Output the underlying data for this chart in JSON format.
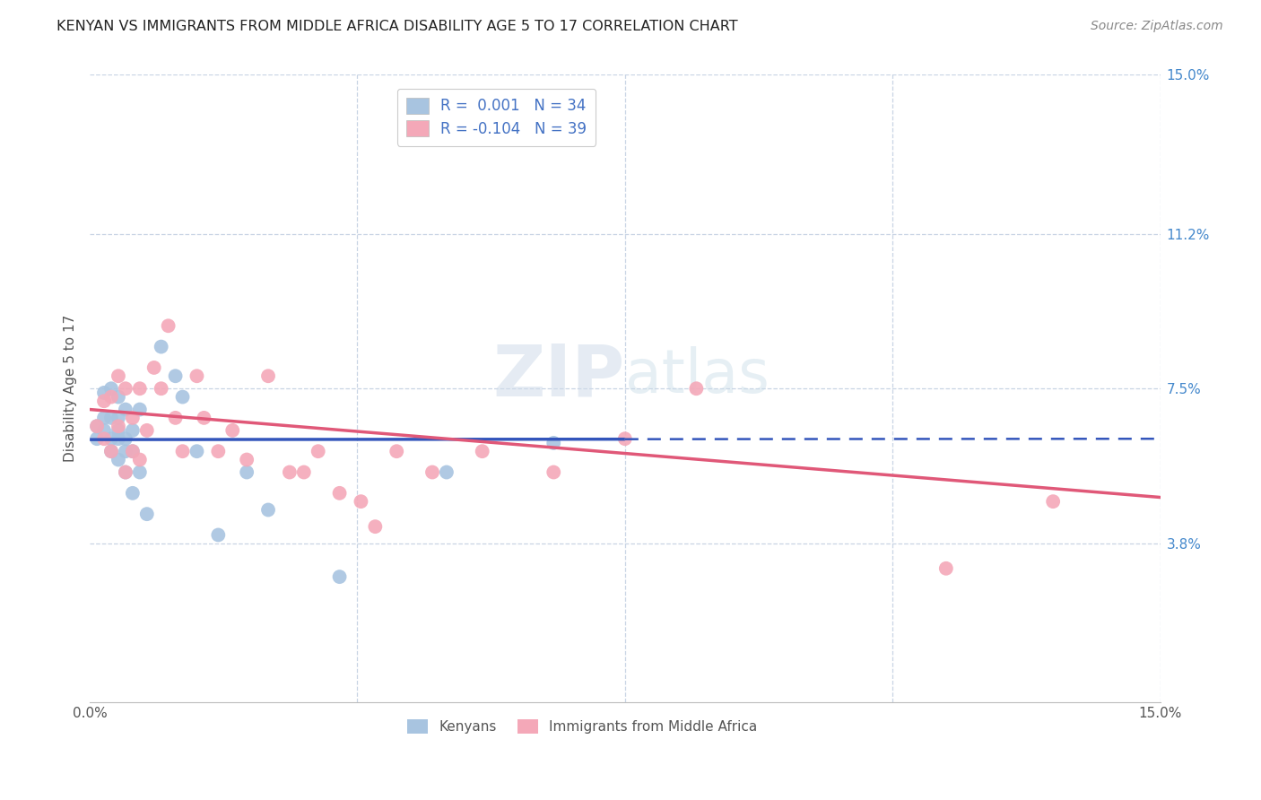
{
  "title": "KENYAN VS IMMIGRANTS FROM MIDDLE AFRICA DISABILITY AGE 5 TO 17 CORRELATION CHART",
  "source": "Source: ZipAtlas.com",
  "ylabel": "Disability Age 5 to 17",
  "xlim": [
    0,
    0.15
  ],
  "ylim": [
    0,
    0.15
  ],
  "ytick_positions_right": [
    0.15,
    0.112,
    0.075,
    0.038
  ],
  "ytick_labels_right": [
    "15.0%",
    "11.2%",
    "7.5%",
    "3.8%"
  ],
  "legend_label1": "R =  0.001   N = 34",
  "legend_label2": "R = -0.104   N = 39",
  "kenyan_color": "#a8c4e0",
  "immigrant_color": "#f4a8b8",
  "kenyan_line_color": "#3355bb",
  "immigrant_line_color": "#e05878",
  "background_color": "#ffffff",
  "grid_color": "#c8d4e4",
  "watermark_color": "#dce8f0",
  "kenyan_line_solid_end": 0.075,
  "kenyans_x": [
    0.001,
    0.001,
    0.002,
    0.002,
    0.002,
    0.003,
    0.003,
    0.003,
    0.003,
    0.004,
    0.004,
    0.004,
    0.004,
    0.004,
    0.005,
    0.005,
    0.005,
    0.005,
    0.006,
    0.006,
    0.006,
    0.007,
    0.007,
    0.008,
    0.01,
    0.012,
    0.013,
    0.015,
    0.018,
    0.022,
    0.025,
    0.035,
    0.05,
    0.065
  ],
  "kenyans_y": [
    0.063,
    0.066,
    0.065,
    0.068,
    0.074,
    0.06,
    0.063,
    0.068,
    0.075,
    0.058,
    0.063,
    0.065,
    0.068,
    0.073,
    0.055,
    0.06,
    0.063,
    0.07,
    0.05,
    0.06,
    0.065,
    0.055,
    0.07,
    0.045,
    0.085,
    0.078,
    0.073,
    0.06,
    0.04,
    0.055,
    0.046,
    0.03,
    0.055,
    0.062
  ],
  "immigrants_x": [
    0.001,
    0.002,
    0.002,
    0.003,
    0.003,
    0.004,
    0.004,
    0.005,
    0.005,
    0.006,
    0.006,
    0.007,
    0.007,
    0.008,
    0.009,
    0.01,
    0.011,
    0.012,
    0.013,
    0.015,
    0.016,
    0.018,
    0.02,
    0.022,
    0.025,
    0.028,
    0.03,
    0.032,
    0.035,
    0.038,
    0.04,
    0.043,
    0.048,
    0.055,
    0.065,
    0.075,
    0.085,
    0.12,
    0.135
  ],
  "immigrants_y": [
    0.066,
    0.063,
    0.072,
    0.06,
    0.073,
    0.066,
    0.078,
    0.055,
    0.075,
    0.06,
    0.068,
    0.058,
    0.075,
    0.065,
    0.08,
    0.075,
    0.09,
    0.068,
    0.06,
    0.078,
    0.068,
    0.06,
    0.065,
    0.058,
    0.078,
    0.055,
    0.055,
    0.06,
    0.05,
    0.048,
    0.042,
    0.06,
    0.055,
    0.06,
    0.055,
    0.063,
    0.075,
    0.032,
    0.048
  ],
  "kenyan_trend_x0": 0.0,
  "kenyan_trend_y0": 0.0628,
  "kenyan_trend_x1": 0.15,
  "kenyan_trend_y1": 0.063,
  "immigrant_trend_x0": 0.0,
  "immigrant_trend_y0": 0.07,
  "immigrant_trend_x1": 0.15,
  "immigrant_trend_y1": 0.049
}
